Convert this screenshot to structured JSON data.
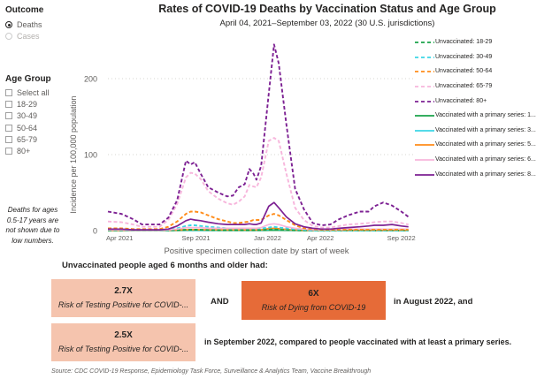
{
  "slicers": {
    "outcome": {
      "label": "Outcome",
      "options": [
        {
          "label": "Deaths",
          "selected": true
        },
        {
          "label": "Cases",
          "selected": false
        }
      ]
    },
    "age_group": {
      "label": "Age Group",
      "options": [
        {
          "label": "Select all",
          "checked": false
        },
        {
          "label": "18-29",
          "checked": false
        },
        {
          "label": "30-49",
          "checked": false
        },
        {
          "label": "50-64",
          "checked": false
        },
        {
          "label": "65-79",
          "checked": false
        },
        {
          "label": "80+",
          "checked": false
        }
      ]
    },
    "note": "Deaths for ages 0.5-17 years are not shown due to low numbers."
  },
  "chart_data": {
    "type": "line",
    "title": "Rates of COVID-19 Deaths by Vaccination Status and Age Group",
    "subtitle": "April 04, 2021–September 03, 2022 (30 U.S. jurisdictions)",
    "xlabel": "Positive specimen collection date by start of week",
    "ylabel": "Incidence per 100,000 population",
    "xlim": [
      "2021-04-04",
      "2022-09-03"
    ],
    "ylim": [
      0,
      250
    ],
    "y_ticks": [
      "0",
      "100",
      "200"
    ],
    "x_ticks": [
      {
        "date": "2021-04-01",
        "label": "Apr 2021"
      },
      {
        "date": "2021-09-01",
        "label": "Sep 2021"
      },
      {
        "date": "2022-01-01",
        "label": "Jan 2022"
      },
      {
        "date": "2022-04-01",
        "label": "Apr 2022"
      },
      {
        "date": "2022-09-01",
        "label": "Sep 2022"
      }
    ],
    "grid": "horizontal dotted",
    "legend_position": "right",
    "x": [
      "2021-04-04",
      "2021-04-27",
      "2021-05-17",
      "2021-06-01",
      "2021-07-01",
      "2021-07-16",
      "2021-07-31",
      "2021-08-15",
      "2021-08-23",
      "2021-08-30",
      "2021-09-09",
      "2021-09-22",
      "2021-10-09",
      "2021-10-24",
      "2021-11-03",
      "2021-11-13",
      "2021-11-23",
      "2021-12-01",
      "2021-12-08",
      "2021-12-13",
      "2021-12-21",
      "2022-01-03",
      "2022-01-12",
      "2022-01-20",
      "2022-02-02",
      "2022-02-17",
      "2022-03-04",
      "2022-03-19",
      "2022-04-03",
      "2022-04-18",
      "2022-05-03",
      "2022-05-18",
      "2022-06-07",
      "2022-06-22",
      "2022-07-02",
      "2022-07-17",
      "2022-08-01",
      "2022-08-17",
      "2022-08-29"
    ],
    "series": [
      {
        "name": "Unvaccinated: 18-29",
        "color": "#1aa34a",
        "dashed": true,
        "values": [
          0.3,
          0.3,
          0.2,
          0.2,
          0.2,
          0.3,
          0.6,
          1,
          1.2,
          1.2,
          1,
          0.8,
          0.6,
          0.5,
          0.5,
          0.5,
          0.5,
          0.6,
          0.6,
          0.6,
          0.7,
          1.2,
          1.5,
          1.2,
          0.7,
          0.4,
          0.2,
          0.1,
          0.1,
          0.1,
          0.1,
          0.1,
          0.1,
          0.1,
          0.1,
          0.1,
          0.1,
          0.1,
          0.1
        ]
      },
      {
        "name": "Unvaccinated: 30-49",
        "color": "#3cd6e6",
        "dashed": true,
        "values": [
          1,
          1,
          0.5,
          0.5,
          0.5,
          1,
          3,
          6,
          7,
          7,
          6,
          5,
          4,
          3,
          3,
          3,
          3,
          3,
          3,
          3,
          3,
          4,
          5,
          4,
          3,
          2,
          1,
          0.5,
          0.3,
          0.3,
          0.3,
          0.3,
          0.3,
          0.3,
          0.3,
          0.3,
          0.3,
          0.3,
          0.3
        ]
      },
      {
        "name": "Unvaccinated: 50-64",
        "color": "#ff8c1a",
        "dashed": true,
        "values": [
          3,
          3,
          2,
          2,
          2,
          5,
          12,
          22,
          25,
          25,
          24,
          20,
          15,
          12,
          10,
          10,
          11,
          12,
          14,
          14,
          14,
          20,
          22,
          20,
          14,
          7,
          3,
          2,
          1,
          1,
          1,
          1,
          1,
          1,
          1,
          1,
          1,
          1,
          1
        ]
      },
      {
        "name": "Unvaccinated: 65-79",
        "color": "#f7b6dc",
        "dashed": true,
        "values": [
          12,
          11,
          8,
          5,
          5,
          14,
          35,
          70,
          76,
          75,
          68,
          52,
          42,
          36,
          34,
          38,
          45,
          60,
          58,
          57,
          70,
          118,
          122,
          118,
          75,
          30,
          14,
          6,
          4,
          4,
          6,
          8,
          9,
          10,
          11,
          12,
          12,
          10,
          8
        ]
      },
      {
        "name": "Unvaccinated: 80+",
        "color": "#7d2193",
        "dashed": true,
        "values": [
          25,
          22,
          15,
          8,
          8,
          17,
          40,
          92,
          87,
          90,
          75,
          57,
          50,
          45,
          46,
          57,
          61,
          81,
          75,
          67,
          85,
          180,
          245,
          220,
          140,
          55,
          28,
          10,
          7,
          8,
          15,
          20,
          25,
          25,
          32,
          37,
          33,
          25,
          18
        ]
      },
      {
        "name": "Vaccinated with a primary series: 1...",
        "color": "#1aa34a",
        "dashed": false,
        "values": [
          0,
          0,
          0,
          0,
          0,
          0,
          0.1,
          0.1,
          0.1,
          0.1,
          0.1,
          0.1,
          0.1,
          0.1,
          0.1,
          0.1,
          0.1,
          0.1,
          0.1,
          0.1,
          0.1,
          0.3,
          0.5,
          0.3,
          0.2,
          0.1,
          0,
          0,
          0,
          0,
          0,
          0,
          0,
          0,
          0,
          0,
          0,
          0,
          0
        ]
      },
      {
        "name": "Vaccinated with a primary series: 3...",
        "color": "#3cd6e6",
        "dashed": false,
        "values": [
          0.1,
          0.1,
          0.1,
          0.1,
          0.1,
          0.1,
          0.2,
          0.4,
          0.5,
          0.5,
          0.5,
          0.4,
          0.3,
          0.3,
          0.3,
          0.3,
          0.3,
          0.3,
          0.3,
          0.3,
          0.4,
          1.5,
          2,
          1.5,
          0.8,
          0.3,
          0.2,
          0.1,
          0.1,
          0.1,
          0.1,
          0.1,
          0.1,
          0.1,
          0.1,
          0.1,
          0.1,
          0.1,
          0.1
        ]
      },
      {
        "name": "Vaccinated with a primary series: 5...",
        "color": "#ff8c1a",
        "dashed": false,
        "values": [
          0.2,
          0.2,
          0.2,
          0.2,
          0.2,
          0.3,
          0.6,
          1,
          1.2,
          1.2,
          1.1,
          1,
          0.9,
          0.8,
          0.8,
          0.8,
          0.8,
          0.8,
          0.8,
          0.8,
          1,
          2.5,
          3,
          2.5,
          1.5,
          0.8,
          0.4,
          0.3,
          0.3,
          0.3,
          0.3,
          0.3,
          0.3,
          0.4,
          0.4,
          0.4,
          0.4,
          0.4,
          0.3
        ]
      },
      {
        "name": "Vaccinated with a primary series: 6...",
        "color": "#f7b6dc",
        "dashed": false,
        "values": [
          1,
          1,
          0.5,
          0.5,
          0.5,
          1,
          2,
          4,
          4,
          4,
          4,
          3,
          3,
          3,
          3,
          3,
          3,
          3,
          3,
          3,
          4,
          8,
          9,
          8,
          5,
          3,
          2,
          1,
          1,
          1,
          1,
          2,
          2,
          2,
          2,
          2,
          2,
          2,
          2
        ]
      },
      {
        "name": "Vaccinated with a primary series: 8...",
        "color": "#7d2193",
        "dashed": false,
        "values": [
          2,
          2,
          1,
          1,
          1,
          2,
          6,
          13,
          15,
          14,
          13,
          11,
          9,
          8,
          8,
          8,
          8,
          9,
          8,
          8,
          10,
          32,
          37,
          30,
          18,
          9,
          5,
          3,
          2,
          2,
          3,
          4,
          5,
          6,
          7,
          7,
          8,
          6,
          5
        ]
      }
    ]
  },
  "summary": {
    "heading": "Unvaccinated people aged 6 months and older had:",
    "cards": [
      {
        "value": "2.7X",
        "label": "Risk of Testing Positive for COVID-..."
      },
      {
        "value": "6X",
        "label": "Risk of Dying from COVID-19"
      },
      {
        "value": "2.5X",
        "label": "Risk of Testing Positive for COVID-..."
      }
    ],
    "and_text": "AND",
    "august_text": "in August 2022, and",
    "september_text": "in September 2022, compared to people vaccinated with at least a primary series.",
    "colors": {
      "light": "#f5c4ae",
      "dark": "#e66b38"
    }
  },
  "source": "Source: CDC COVID-19 Response, Epidemiology Task Force, Surveillance & Analytics Team, Vaccine Breakthrough"
}
